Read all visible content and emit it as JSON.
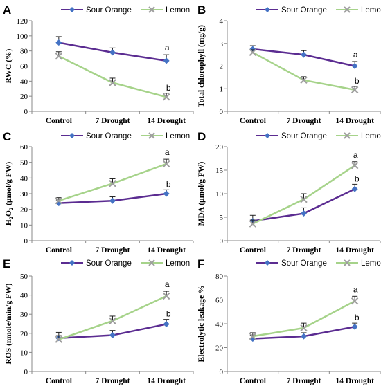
{
  "legend": {
    "series1": "Sour Orange",
    "series2": "Lemon"
  },
  "colors": {
    "series1": "#5b2c91",
    "series2": "#a6d38a",
    "marker1": "#4472c4",
    "marker2": "#9e9e9e"
  },
  "chart_data": [
    {
      "type": "line",
      "panel": "A",
      "ylabel": "RWC (%)",
      "categories": [
        "Control",
        "7 Drought",
        "14 Drought"
      ],
      "ylim": [
        0,
        120
      ],
      "yticks": [
        0,
        20,
        40,
        60,
        80,
        100,
        120
      ],
      "series": [
        {
          "name": "Sour Orange",
          "values": [
            91,
            78,
            67
          ],
          "errors": [
            8,
            6,
            8
          ]
        },
        {
          "name": "Lemon",
          "values": [
            73,
            38,
            19
          ],
          "errors": [
            6,
            6,
            5
          ]
        }
      ],
      "annotations": [
        "a",
        "b"
      ]
    },
    {
      "type": "line",
      "panel": "B",
      "ylabel": "Total chlorophyll (mg/g)",
      "categories": [
        "Control",
        "7 Drought",
        "14 Drought"
      ],
      "ylim": [
        0,
        4
      ],
      "yticks": [
        0,
        1,
        2,
        3,
        4
      ],
      "series": [
        {
          "name": "Sour Orange",
          "values": [
            2.75,
            2.5,
            2.0
          ],
          "errors": [
            0.15,
            0.18,
            0.2
          ]
        },
        {
          "name": "Lemon",
          "values": [
            2.6,
            1.38,
            0.95
          ],
          "errors": [
            0.12,
            0.15,
            0.15
          ]
        }
      ],
      "annotations": [
        "a",
        "b"
      ]
    },
    {
      "type": "line",
      "panel": "C",
      "ylabel": "H2O2 (μmol/g FW)",
      "categories": [
        "Control",
        "7 Drought",
        "14 Drought"
      ],
      "ylim": [
        0,
        60
      ],
      "yticks": [
        0,
        10,
        20,
        30,
        40,
        50,
        60
      ],
      "series": [
        {
          "name": "Sour Orange",
          "values": [
            24,
            25.5,
            30
          ],
          "errors": [
            2,
            2.5,
            2.5
          ]
        },
        {
          "name": "Lemon",
          "values": [
            25.5,
            36.5,
            49
          ],
          "errors": [
            2,
            3,
            3
          ]
        }
      ],
      "annotations": [
        "a",
        "b"
      ]
    },
    {
      "type": "line",
      "panel": "D",
      "ylabel": "MDA (μmol/g FW)",
      "categories": [
        "Control",
        "7 Drought",
        "14 Drought"
      ],
      "ylim": [
        0,
        20
      ],
      "yticks": [
        0,
        5,
        10,
        15,
        20
      ],
      "series": [
        {
          "name": "Sour Orange",
          "values": [
            4.2,
            5.8,
            11
          ],
          "errors": [
            1.2,
            1.2,
            1
          ]
        },
        {
          "name": "Lemon",
          "values": [
            3.6,
            8.8,
            16
          ],
          "errors": [
            0.8,
            1.2,
            0.8
          ]
        }
      ],
      "annotations": [
        "a",
        "b"
      ]
    },
    {
      "type": "line",
      "panel": "E",
      "ylabel": "ROS (nmole/min/g FW)",
      "categories": [
        "Control",
        "7 Drought",
        "14 Drought"
      ],
      "ylim": [
        0,
        50
      ],
      "yticks": [
        0,
        10,
        20,
        30,
        40,
        50
      ],
      "series": [
        {
          "name": "Sour Orange",
          "values": [
            17.5,
            19,
            24.8
          ],
          "errors": [
            3,
            2.5,
            2.5
          ]
        },
        {
          "name": "Lemon",
          "values": [
            16.8,
            26.5,
            39.5
          ],
          "errors": [
            2,
            2.5,
            2.5
          ]
        }
      ],
      "annotations": [
        "a",
        "b"
      ]
    },
    {
      "type": "line",
      "panel": "F",
      "ylabel": "Electrolytic leakage %",
      "categories": [
        "Control",
        "7 Drought",
        "14 Drought"
      ],
      "ylim": [
        0,
        80
      ],
      "yticks": [
        0,
        20,
        40,
        60,
        80
      ],
      "series": [
        {
          "name": "Sour Orange",
          "values": [
            27.5,
            29.5,
            37.5
          ],
          "errors": [
            3,
            3,
            3
          ]
        },
        {
          "name": "Lemon",
          "values": [
            29.5,
            36.5,
            59
          ],
          "errors": [
            3,
            4,
            4
          ]
        }
      ],
      "annotations": [
        "a",
        "b"
      ]
    }
  ]
}
